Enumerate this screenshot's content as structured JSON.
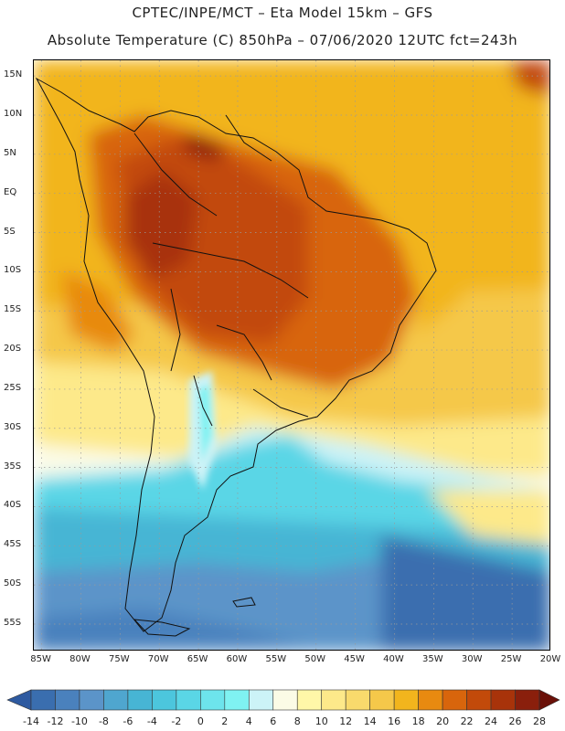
{
  "titles": {
    "line1": "CPTEC/INPE/MCT –  Eta Model 15km – GFS",
    "line2": "Absolute Temperature (C) 850hPa – 07/06/2020 12UTC fct=243h"
  },
  "axes": {
    "lat_labels": [
      "15N",
      "10N",
      "5N",
      "EQ",
      "5S",
      "10S",
      "15S",
      "20S",
      "25S",
      "30S",
      "35S",
      "40S",
      "45S",
      "50S",
      "55S"
    ],
    "lon_labels": [
      "85W",
      "80W",
      "75W",
      "70W",
      "65W",
      "60W",
      "55W",
      "50W",
      "45W",
      "40W",
      "35W",
      "30W",
      "25W",
      "20W"
    ]
  },
  "chart_data": {
    "type": "heatmap",
    "variable": "Absolute Temperature (C) 850hPa",
    "lat_range": [
      -58.5,
      17.0
    ],
    "lon_range": [
      -86.0,
      -20.0
    ],
    "colorbar": {
      "tick_labels": [
        "-14",
        "-12",
        "-10",
        "-8",
        "-6",
        "-4",
        "-2",
        "0",
        "2",
        "4",
        "6",
        "8",
        "10",
        "12",
        "14",
        "16",
        "18",
        "20",
        "22",
        "24",
        "26",
        "28"
      ],
      "colors": [
        "#2e5aa0",
        "#3a6eaf",
        "#4a81bd",
        "#5b94c9",
        "#4fa6cf",
        "#47b5d4",
        "#4cc6dd",
        "#5ad6e6",
        "#6de4ec",
        "#7ff2f2",
        "#ccf3f7",
        "#fbfbe6",
        "#fff7a8",
        "#fde98a",
        "#f9da6c",
        "#f5c84a",
        "#f2b51d",
        "#e88a10",
        "#d8650c",
        "#c24a0a",
        "#a8330a",
        "#8a1f0c",
        "#6a1008"
      ],
      "min_label": "-14",
      "max_label": "28"
    }
  }
}
